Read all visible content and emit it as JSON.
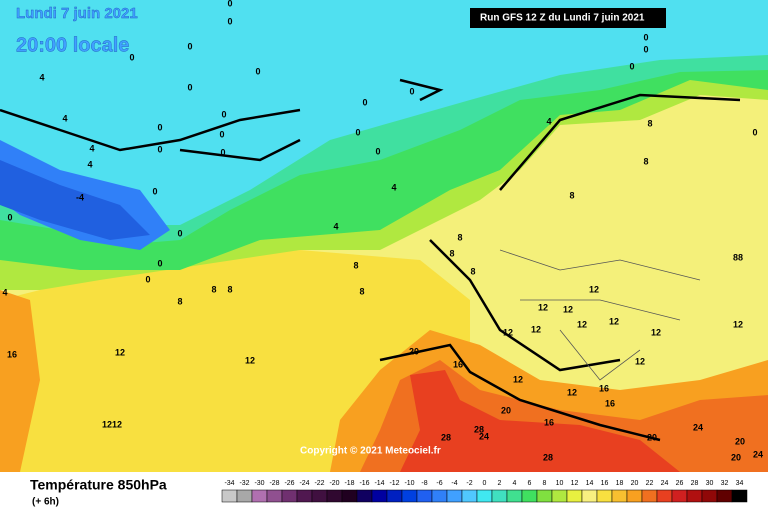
{
  "header": {
    "title": "Lundi 7 juin 2021",
    "time": "20:00 locale",
    "run": "Run GFS 12 Z du Lundi 7 juin 2021"
  },
  "map": {
    "copyright": "Copyright © 2021 Meteociel.fr",
    "contour_labels": [
      "0",
      "0",
      "0",
      "0",
      "0",
      "0",
      "0",
      "0",
      "0",
      "0",
      "0",
      "0",
      "0",
      "0",
      "0",
      "0",
      "0",
      "0",
      "0",
      "0",
      "0",
      "0",
      "0",
      "0",
      "4",
      "4",
      "4",
      "4",
      "4",
      "4",
      "4",
      "4",
      "-4",
      "8",
      "8",
      "8",
      "8",
      "8",
      "8",
      "8",
      "8",
      "8",
      "8",
      "8",
      "88",
      "12",
      "12",
      "12",
      "12",
      "12",
      "12",
      "12",
      "12",
      "12",
      "12",
      "12",
      "12",
      "12",
      "12",
      "1212",
      "16",
      "16",
      "16",
      "16",
      "16",
      "20",
      "20",
      "20",
      "20",
      "20",
      "24",
      "24",
      "24",
      "28",
      "28",
      "28"
    ]
  },
  "legend": {
    "title": "Température 850hPa",
    "step": "(+ 6h)",
    "ticks": [
      -34,
      -32,
      -30,
      -28,
      -26,
      -24,
      -22,
      -20,
      -18,
      -16,
      -14,
      -12,
      -10,
      -8,
      -6,
      -4,
      -2,
      0,
      2,
      4,
      6,
      8,
      10,
      12,
      14,
      16,
      18,
      20,
      22,
      24,
      26,
      28,
      30,
      32,
      34
    ],
    "colors": [
      "#c8c8c8",
      "#a8a8a8",
      "#b070b0",
      "#905090",
      "#703070",
      "#501850",
      "#401040",
      "#300830",
      "#200020",
      "#100060",
      "#0000a0",
      "#0020c0",
      "#0040e0",
      "#2060f0",
      "#3080f8",
      "#40a0ff",
      "#50c8ff",
      "#40e8f0",
      "#40e0c0",
      "#40e090",
      "#40e060",
      "#80e040",
      "#b0e840",
      "#e8f040",
      "#f8f080",
      "#f8e040",
      "#f8c030",
      "#f8a020",
      "#f07020",
      "#e84020",
      "#d02020",
      "#b01010",
      "#900808",
      "#600000",
      "#000000"
    ]
  }
}
